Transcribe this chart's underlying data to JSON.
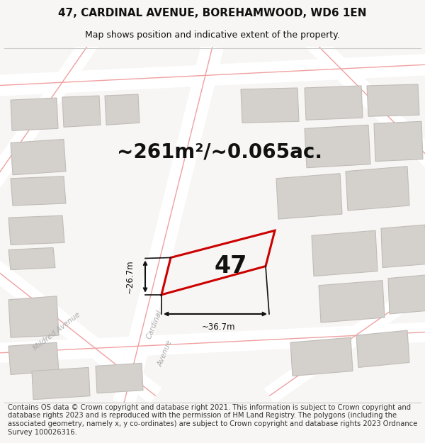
{
  "title": "47, CARDINAL AVENUE, BOREHAMWOOD, WD6 1EN",
  "subtitle": "Map shows position and indicative extent of the property.",
  "area_text": "~261m²/~0.065ac.",
  "property_number": "47",
  "dim1_label": "~26.7m",
  "dim2_label": "~36.7m",
  "footer": "Contains OS data © Crown copyright and database right 2021. This information is subject to Crown copyright and database rights 2023 and is reproduced with the permission of HM Land Registry. The polygons (including the associated geometry, namely x, y co-ordinates) are subject to Crown copyright and database rights 2023 Ordnance Survey 100026316.",
  "bg_color": "#eeece8",
  "road_color": "#ffffff",
  "road_line_color": "#f0a0a0",
  "building_fill": "#d4d0cc",
  "building_edge": "#c0bcb8",
  "prop_fill": "#f8f6f4",
  "prop_edge": "#cc0000",
  "arrow_color": "#111111",
  "text_color": "#111111",
  "street_label_color": "#aaaaaa",
  "title_fontsize": 11,
  "subtitle_fontsize": 9,
  "area_fontsize": 20,
  "footer_fontsize": 7.2
}
